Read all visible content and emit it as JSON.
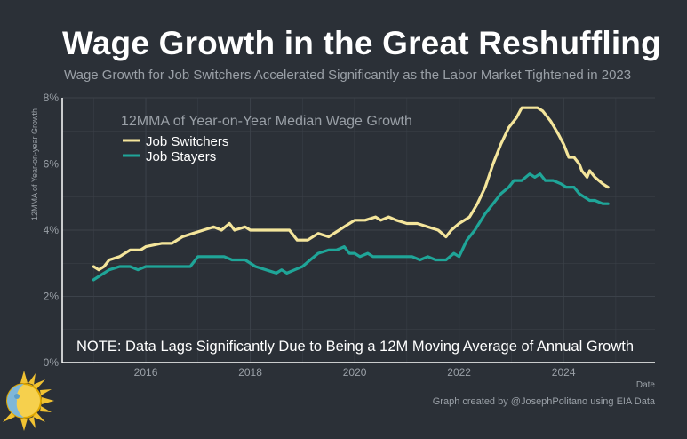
{
  "title": "Wage Growth in the Great Reshuffling",
  "subtitle": "Wage Growth for Job Switchers Accelerated Significantly as the Labor Market Tightened in 2023",
  "credit": "Graph created by @JosephPolitano using EIA Data",
  "colors": {
    "background": "#2b3037",
    "switchers": "#f4e59b",
    "stayers": "#1fa598",
    "grid": "#3c424a",
    "axis": "#ffffff",
    "text_muted": "#9aa0a7"
  },
  "chart_data": {
    "type": "line",
    "title": "12MMA of Year-on-Year Median Wage Growth",
    "xlabel": "Date",
    "ylabel": "12MMA of Year-on-year Growth",
    "xlim": [
      2014.4,
      2025.75
    ],
    "ylim": [
      0,
      8
    ],
    "x_ticks": [
      2016,
      2018,
      2020,
      2022,
      2024
    ],
    "x_tick_labels": [
      "2016",
      "2018",
      "2020",
      "2022",
      "2024"
    ],
    "y_ticks": [
      0,
      2,
      4,
      6,
      8
    ],
    "y_tick_labels": [
      "0%",
      "2%",
      "4%",
      "6%",
      "8%"
    ],
    "grid": true,
    "legend_title": "12MMA of Year-on-Year Median Wage Growth",
    "legend_position": "top-left",
    "annotation": "NOTE: Data Lags Significantly Due to Being a 12M Moving Average of Annual Growth",
    "series": [
      {
        "name": "Job Switchers",
        "color": "#f4e59b",
        "points": [
          [
            2015.0,
            2.9
          ],
          [
            2015.1,
            2.8
          ],
          [
            2015.2,
            2.9
          ],
          [
            2015.3,
            3.1
          ],
          [
            2015.5,
            3.2
          ],
          [
            2015.7,
            3.4
          ],
          [
            2015.9,
            3.4
          ],
          [
            2016.0,
            3.5
          ],
          [
            2016.3,
            3.6
          ],
          [
            2016.5,
            3.6
          ],
          [
            2016.7,
            3.8
          ],
          [
            2016.9,
            3.9
          ],
          [
            2017.1,
            4.0
          ],
          [
            2017.3,
            4.1
          ],
          [
            2017.45,
            4.0
          ],
          [
            2017.6,
            4.2
          ],
          [
            2017.7,
            4.0
          ],
          [
            2017.9,
            4.1
          ],
          [
            2018.0,
            4.0
          ],
          [
            2018.3,
            4.0
          ],
          [
            2018.6,
            4.0
          ],
          [
            2018.75,
            4.0
          ],
          [
            2018.9,
            3.7
          ],
          [
            2019.1,
            3.7
          ],
          [
            2019.3,
            3.9
          ],
          [
            2019.5,
            3.8
          ],
          [
            2019.7,
            4.0
          ],
          [
            2019.9,
            4.2
          ],
          [
            2020.0,
            4.3
          ],
          [
            2020.2,
            4.3
          ],
          [
            2020.4,
            4.4
          ],
          [
            2020.5,
            4.3
          ],
          [
            2020.65,
            4.4
          ],
          [
            2020.8,
            4.3
          ],
          [
            2021.0,
            4.2
          ],
          [
            2021.2,
            4.2
          ],
          [
            2021.4,
            4.1
          ],
          [
            2021.6,
            4.0
          ],
          [
            2021.75,
            3.8
          ],
          [
            2021.85,
            4.0
          ],
          [
            2022.0,
            4.2
          ],
          [
            2022.2,
            4.4
          ],
          [
            2022.35,
            4.8
          ],
          [
            2022.5,
            5.3
          ],
          [
            2022.65,
            6.0
          ],
          [
            2022.8,
            6.6
          ],
          [
            2022.95,
            7.1
          ],
          [
            2023.1,
            7.4
          ],
          [
            2023.2,
            7.7
          ],
          [
            2023.4,
            7.7
          ],
          [
            2023.5,
            7.7
          ],
          [
            2023.6,
            7.6
          ],
          [
            2023.75,
            7.3
          ],
          [
            2023.9,
            6.9
          ],
          [
            2024.0,
            6.6
          ],
          [
            2024.1,
            6.2
          ],
          [
            2024.2,
            6.2
          ],
          [
            2024.3,
            6.0
          ],
          [
            2024.35,
            5.8
          ],
          [
            2024.45,
            5.6
          ],
          [
            2024.5,
            5.8
          ],
          [
            2024.6,
            5.6
          ],
          [
            2024.75,
            5.4
          ],
          [
            2024.85,
            5.3
          ]
        ]
      },
      {
        "name": "Job Stayers",
        "color": "#1fa598",
        "points": [
          [
            2015.0,
            2.5
          ],
          [
            2015.1,
            2.6
          ],
          [
            2015.3,
            2.8
          ],
          [
            2015.5,
            2.9
          ],
          [
            2015.7,
            2.9
          ],
          [
            2015.85,
            2.8
          ],
          [
            2016.0,
            2.9
          ],
          [
            2016.3,
            2.9
          ],
          [
            2016.6,
            2.9
          ],
          [
            2016.85,
            2.9
          ],
          [
            2017.0,
            3.2
          ],
          [
            2017.3,
            3.2
          ],
          [
            2017.5,
            3.2
          ],
          [
            2017.65,
            3.1
          ],
          [
            2017.9,
            3.1
          ],
          [
            2018.1,
            2.9
          ],
          [
            2018.3,
            2.8
          ],
          [
            2018.5,
            2.7
          ],
          [
            2018.6,
            2.8
          ],
          [
            2018.7,
            2.7
          ],
          [
            2018.85,
            2.8
          ],
          [
            2019.0,
            2.9
          ],
          [
            2019.15,
            3.1
          ],
          [
            2019.3,
            3.3
          ],
          [
            2019.5,
            3.4
          ],
          [
            2019.65,
            3.4
          ],
          [
            2019.8,
            3.5
          ],
          [
            2019.9,
            3.3
          ],
          [
            2020.0,
            3.3
          ],
          [
            2020.1,
            3.2
          ],
          [
            2020.25,
            3.3
          ],
          [
            2020.35,
            3.2
          ],
          [
            2020.6,
            3.2
          ],
          [
            2020.9,
            3.2
          ],
          [
            2021.1,
            3.2
          ],
          [
            2021.25,
            3.1
          ],
          [
            2021.4,
            3.2
          ],
          [
            2021.55,
            3.1
          ],
          [
            2021.75,
            3.1
          ],
          [
            2021.9,
            3.3
          ],
          [
            2022.0,
            3.2
          ],
          [
            2022.15,
            3.7
          ],
          [
            2022.3,
            4.0
          ],
          [
            2022.5,
            4.5
          ],
          [
            2022.65,
            4.8
          ],
          [
            2022.8,
            5.1
          ],
          [
            2022.95,
            5.3
          ],
          [
            2023.05,
            5.5
          ],
          [
            2023.2,
            5.5
          ],
          [
            2023.35,
            5.7
          ],
          [
            2023.45,
            5.6
          ],
          [
            2023.55,
            5.7
          ],
          [
            2023.65,
            5.5
          ],
          [
            2023.8,
            5.5
          ],
          [
            2023.95,
            5.4
          ],
          [
            2024.05,
            5.3
          ],
          [
            2024.2,
            5.3
          ],
          [
            2024.3,
            5.1
          ],
          [
            2024.4,
            5.0
          ],
          [
            2024.5,
            4.9
          ],
          [
            2024.6,
            4.9
          ],
          [
            2024.75,
            4.8
          ],
          [
            2024.85,
            4.8
          ]
        ]
      }
    ]
  }
}
